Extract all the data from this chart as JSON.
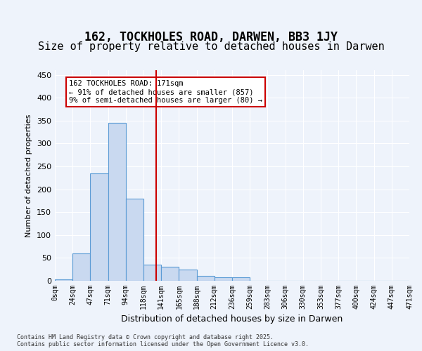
{
  "title1": "162, TOCKHOLES ROAD, DARWEN, BB3 1JY",
  "title2": "Size of property relative to detached houses in Darwen",
  "xlabel": "Distribution of detached houses by size in Darwen",
  "ylabel": "Number of detached properties",
  "bin_labels": [
    "0sqm",
    "24sqm",
    "47sqm",
    "71sqm",
    "94sqm",
    "118sqm",
    "141sqm",
    "165sqm",
    "188sqm",
    "212sqm",
    "236sqm",
    "259sqm",
    "283sqm",
    "306sqm",
    "330sqm",
    "353sqm",
    "377sqm",
    "400sqm",
    "424sqm",
    "447sqm",
    "471sqm"
  ],
  "bar_values": [
    3,
    60,
    235,
    345,
    180,
    35,
    30,
    25,
    10,
    8,
    8,
    0,
    0,
    0,
    0,
    0,
    0,
    0,
    0,
    0
  ],
  "bar_color": "#c9d9f0",
  "bar_edge_color": "#5b9bd5",
  "background_color": "#eef3fb",
  "grid_color": "#ffffff",
  "vline_x": 5.7,
  "vline_color": "#cc0000",
  "annotation_text": "162 TOCKHOLES ROAD: 171sqm\n← 91% of detached houses are smaller (857)\n9% of semi-detached houses are larger (80) →",
  "annotation_box_color": "#ffffff",
  "annotation_box_edgecolor": "#cc0000",
  "ylim": [
    0,
    460
  ],
  "yticks": [
    0,
    50,
    100,
    150,
    200,
    250,
    300,
    350,
    400,
    450
  ],
  "footer": "Contains HM Land Registry data © Crown copyright and database right 2025.\nContains public sector information licensed under the Open Government Licence v3.0.",
  "title_fontsize": 12,
  "subtitle_fontsize": 11
}
